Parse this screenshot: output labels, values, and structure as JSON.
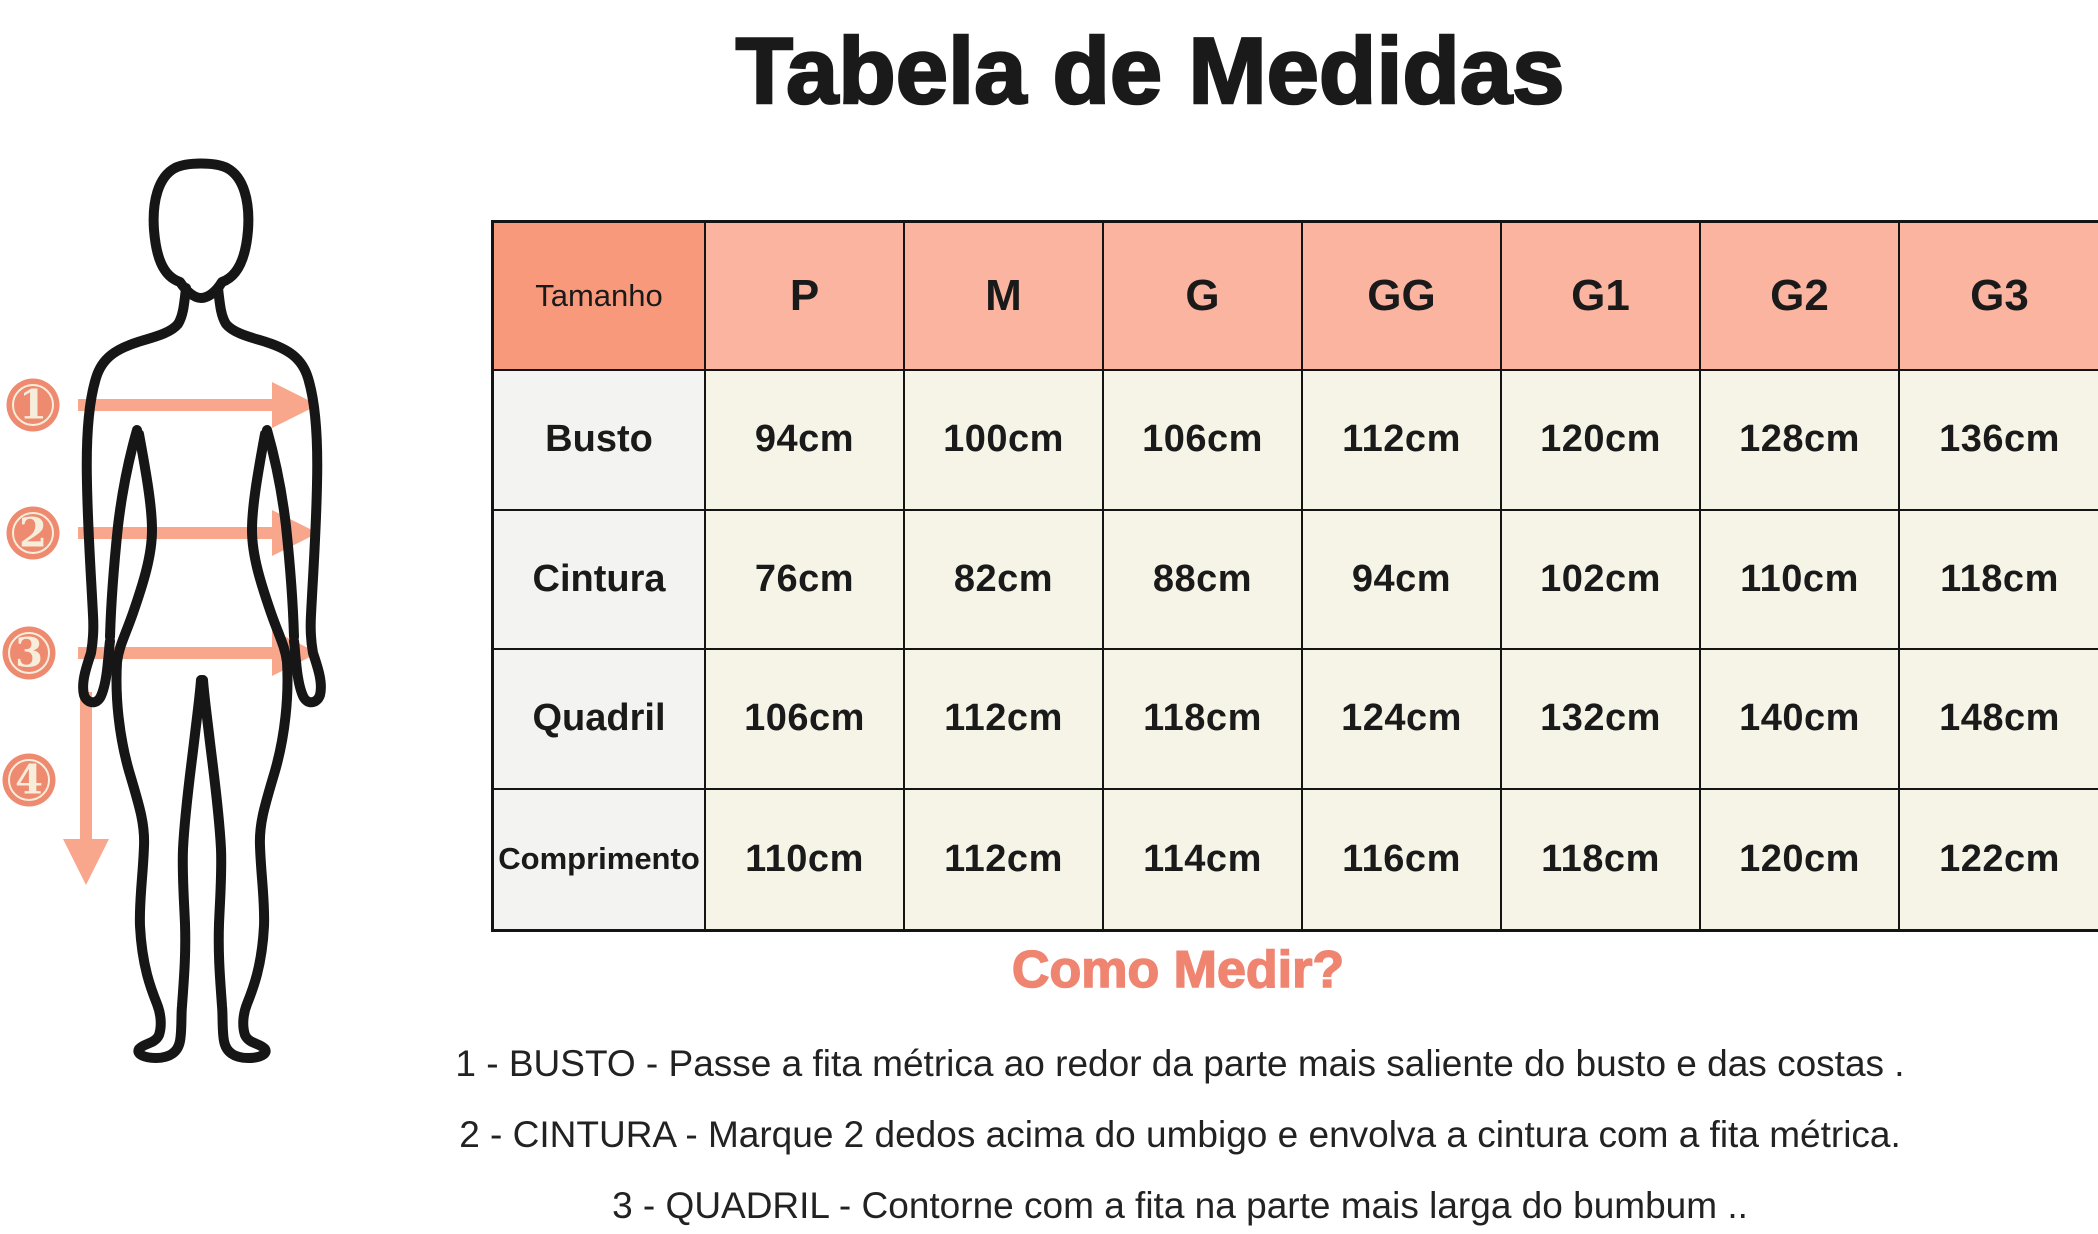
{
  "title": "Tabela de Medidas",
  "size_table": {
    "columns": [
      "Tamanho",
      "P",
      "M",
      "G",
      "GG",
      "G1",
      "G2",
      "G3"
    ],
    "rows": [
      {
        "label": "Busto",
        "values": [
          "94cm",
          "100cm",
          "106cm",
          "112cm",
          "120cm",
          "128cm",
          "136cm"
        ]
      },
      {
        "label": "Cintura",
        "values": [
          "76cm",
          "82cm",
          "88cm",
          "94cm",
          "102cm",
          "110cm",
          "118cm"
        ]
      },
      {
        "label": "Quadril",
        "values": [
          "106cm",
          "112cm",
          "118cm",
          "124cm",
          "132cm",
          "140cm",
          "148cm"
        ]
      },
      {
        "label": "Comprimento",
        "values": [
          "110cm",
          "112cm",
          "114cm",
          "116cm",
          "118cm",
          "120cm",
          "122cm"
        ]
      }
    ]
  },
  "how_to_measure": {
    "heading": "Como Medir?",
    "steps": [
      "1 - BUSTO - Passe a fita métrica ao redor da parte mais saliente do busto e das costas .",
      "2 - CINTURA - Marque 2 dedos acima do umbigo e envolva a cintura com a fita métrica.",
      "3 - QUADRIL - Contorne com a fita na parte mais larga do bumbum .."
    ]
  },
  "figure_markers": [
    "1",
    "2",
    "3",
    "4"
  ],
  "colors": {
    "border": "#141414",
    "ink": "#1a1a1a",
    "tamanho_header_bg": "#f8997b",
    "size_header_bg": "#fbb49f",
    "label_cell_bg": "#f3f3f1",
    "value_cell_bg": "#f5f4e6",
    "badge_fill": "#ed8a70",
    "badge_text": "#f6eedb",
    "arrow": "#f9a78c",
    "heading_accent": "#ef8571"
  }
}
